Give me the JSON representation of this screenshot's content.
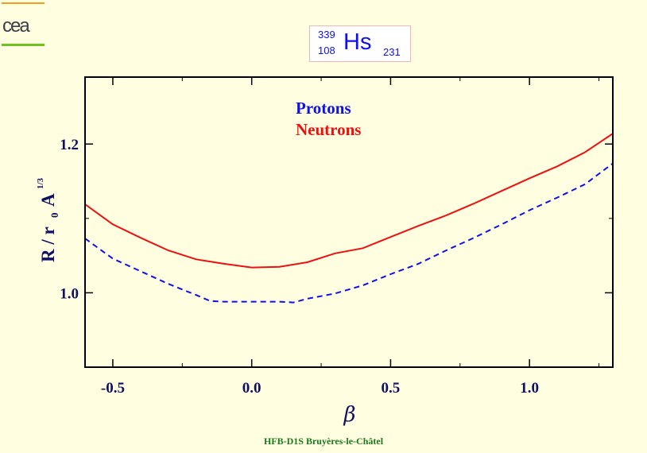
{
  "logo": {
    "text": "cea"
  },
  "nucleus": {
    "mass_number": "339",
    "atomic_number": "108",
    "symbol": "Hs",
    "neutron_number": "231"
  },
  "footer": "HFB-D1S Bruyères-le-Châtel",
  "colors": {
    "protons": "#1010ee",
    "neutrons": "#ee1010",
    "axis_text": "#101060",
    "background": "#fffee0"
  },
  "chart_data": {
    "type": "line",
    "title": "339 108 Hs 231",
    "xlabel": "β",
    "ylabel": "R / r0 A^1/3",
    "ylabel_main": "R / r",
    "ylabel_sub": "0",
    "ylabel_A": "A",
    "ylabel_sup": "1/3",
    "xlim": [
      -0.6,
      1.3
    ],
    "ylim": [
      0.9,
      1.29
    ],
    "xticks": [
      -0.5,
      0.0,
      0.5,
      1.0
    ],
    "xtick_labels": [
      "-0.5",
      "0.0",
      "0.5",
      "1.0"
    ],
    "yticks": [
      1.0,
      1.2
    ],
    "ytick_labels": [
      "1.0",
      "1.2"
    ],
    "legend": {
      "placement": "top-center",
      "entries": [
        "Protons",
        "Neutrons"
      ]
    },
    "series": [
      {
        "name": "Protons",
        "style": "dashed",
        "x": [
          -0.6,
          -0.5,
          -0.4,
          -0.3,
          -0.2,
          -0.15,
          -0.1,
          0,
          0.1,
          0.15,
          0.2,
          0.3,
          0.4,
          0.5,
          0.6,
          0.7,
          0.8,
          0.9,
          1.0,
          1.1,
          1.2,
          1.3
        ],
        "y": [
          1.073,
          1.046,
          1.029,
          1.012,
          0.997,
          0.989,
          0.988,
          0.988,
          0.988,
          0.987,
          0.992,
          0.999,
          1.01,
          1.025,
          1.039,
          1.057,
          1.074,
          1.092,
          1.111,
          1.128,
          1.146,
          1.174
        ]
      },
      {
        "name": "Neutrons",
        "style": "solid",
        "x": [
          -0.6,
          -0.5,
          -0.4,
          -0.3,
          -0.2,
          -0.1,
          0,
          0.1,
          0.2,
          0.3,
          0.4,
          0.5,
          0.6,
          0.7,
          0.8,
          0.9,
          1.0,
          1.1,
          1.2,
          1.3
        ],
        "y": [
          1.119,
          1.092,
          1.074,
          1.057,
          1.045,
          1.039,
          1.034,
          1.035,
          1.041,
          1.053,
          1.06,
          1.075,
          1.09,
          1.104,
          1.12,
          1.137,
          1.154,
          1.17,
          1.189,
          1.214
        ]
      }
    ]
  }
}
